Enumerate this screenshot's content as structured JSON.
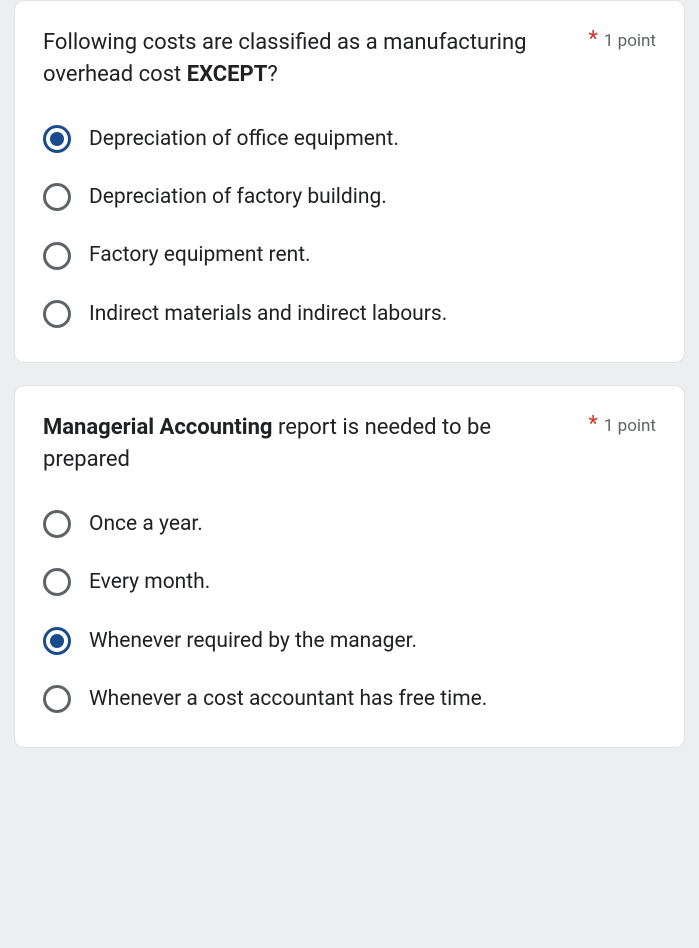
{
  "questions": [
    {
      "text_before": "Following costs are classified as a manufacturing overhead cost ",
      "text_bold": "EXCEPT",
      "text_after": "?",
      "required_mark": "*",
      "points": "1 point",
      "options": [
        {
          "label": "Depreciation of office equipment.",
          "selected": true
        },
        {
          "label": "Depreciation of factory building.",
          "selected": false
        },
        {
          "label": "Factory equipment rent.",
          "selected": false
        },
        {
          "label": "Indirect materials and indirect labours.",
          "selected": false
        }
      ]
    },
    {
      "text_bold_first": "Managerial Accounting",
      "text_after_bold": " report is needed to be prepared",
      "required_mark": "*",
      "points": "1 point",
      "options": [
        {
          "label": "Once a year.",
          "selected": false
        },
        {
          "label": "Every month.",
          "selected": false
        },
        {
          "label": "Whenever required by the manager.",
          "selected": true
        },
        {
          "label": "Whenever a cost accountant has free time.",
          "selected": false
        }
      ]
    }
  ],
  "colors": {
    "background": "#edeef0",
    "card_bg": "#ffffff",
    "text": "#202124",
    "muted": "#5f6368",
    "required": "#d93025",
    "radio_selected": "#1a4b8c"
  },
  "typography": {
    "question_fontsize": 22,
    "option_fontsize": 21,
    "points_fontsize": 17
  }
}
